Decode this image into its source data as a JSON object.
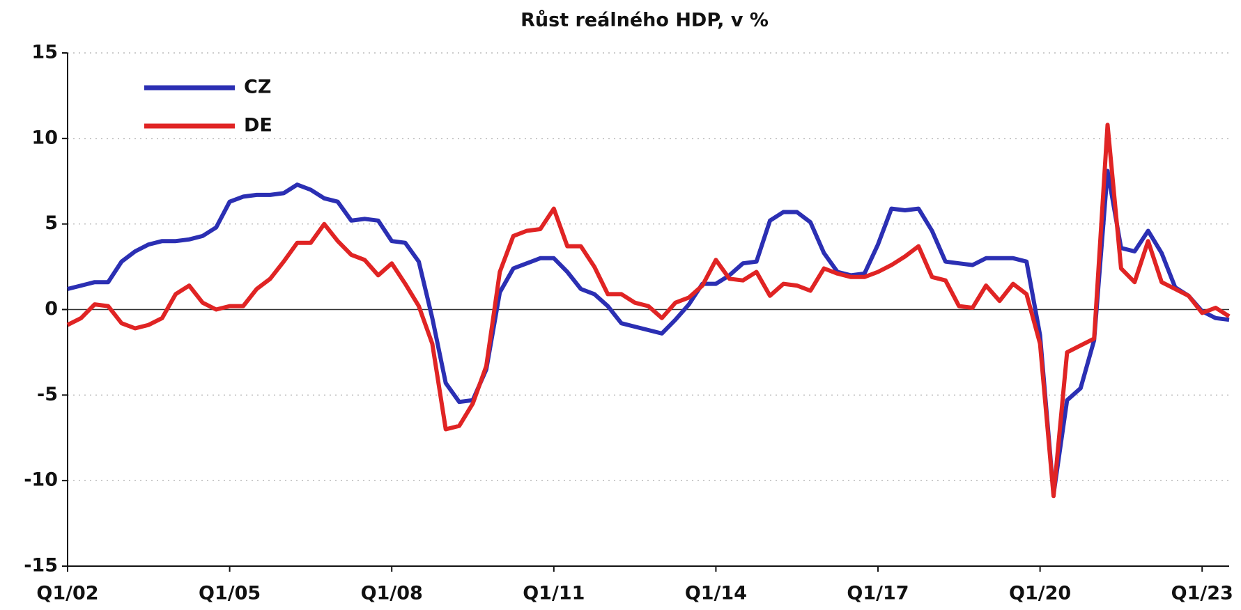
{
  "chart_data": {
    "type": "line",
    "title": "Růst reálného HDP, v %",
    "categories": [
      "Q1/02",
      null,
      null,
      null,
      null,
      null,
      null,
      null,
      null,
      null,
      null,
      null,
      "Q1/05",
      null,
      null,
      null,
      null,
      null,
      null,
      null,
      null,
      null,
      null,
      null,
      "Q1/08",
      null,
      null,
      null,
      null,
      null,
      null,
      null,
      null,
      null,
      null,
      null,
      "Q1/11",
      null,
      null,
      null,
      null,
      null,
      null,
      null,
      null,
      null,
      null,
      null,
      "Q1/14",
      null,
      null,
      null,
      null,
      null,
      null,
      null,
      null,
      null,
      null,
      null,
      "Q1/17",
      null,
      null,
      null,
      null,
      null,
      null,
      null,
      null,
      null,
      null,
      null,
      "Q1/20",
      null,
      null,
      null,
      null,
      null,
      null,
      null,
      null,
      null,
      null,
      null,
      "Q1/23",
      null,
      null
    ],
    "series": [
      {
        "name": "CZ",
        "color": "#2b2fb3",
        "values": [
          1.2,
          1.4,
          1.6,
          1.6,
          2.8,
          3.4,
          3.8,
          4.0,
          4.0,
          4.1,
          4.3,
          4.8,
          6.3,
          6.6,
          6.7,
          6.7,
          6.8,
          7.3,
          7.0,
          6.5,
          6.3,
          5.2,
          5.3,
          5.2,
          4.0,
          3.9,
          2.8,
          -0.5,
          -4.3,
          -5.4,
          -5.3,
          -3.5,
          1.0,
          2.4,
          2.7,
          3.0,
          3.0,
          2.2,
          1.2,
          0.9,
          0.2,
          -0.8,
          -1.0,
          -1.2,
          -1.4,
          -0.6,
          0.3,
          1.5,
          1.5,
          2.0,
          2.7,
          2.8,
          5.2,
          5.7,
          5.7,
          5.1,
          3.3,
          2.2,
          2.0,
          2.1,
          3.8,
          5.9,
          5.8,
          5.9,
          4.6,
          2.8,
          2.7,
          2.6,
          3.0,
          3.0,
          3.0,
          2.8,
          -1.5,
          -10.8,
          -5.3,
          -4.6,
          -1.8,
          8.1,
          3.6,
          3.4,
          4.6,
          3.3,
          1.3,
          0.8,
          -0.1,
          -0.5,
          -0.6
        ]
      },
      {
        "name": "DE",
        "color": "#e02424",
        "values": [
          -0.9,
          -0.5,
          0.3,
          0.2,
          -0.8,
          -1.1,
          -0.9,
          -0.5,
          0.9,
          1.4,
          0.4,
          0.0,
          0.2,
          0.2,
          1.2,
          1.8,
          2.8,
          3.9,
          3.9,
          5.0,
          4.0,
          3.2,
          2.9,
          2.0,
          2.7,
          1.5,
          0.2,
          -2.0,
          -7.0,
          -6.8,
          -5.5,
          -3.3,
          2.2,
          4.3,
          4.6,
          4.7,
          5.9,
          3.7,
          3.7,
          2.5,
          0.9,
          0.9,
          0.4,
          0.2,
          -0.5,
          0.4,
          0.7,
          1.4,
          2.9,
          1.8,
          1.7,
          2.2,
          0.8,
          1.5,
          1.4,
          1.1,
          2.4,
          2.1,
          1.9,
          1.9,
          2.2,
          2.6,
          3.1,
          3.7,
          1.9,
          1.7,
          0.2,
          0.1,
          1.4,
          0.5,
          1.5,
          0.9,
          -2.0,
          -10.9,
          -2.5,
          -2.1,
          -1.7,
          10.8,
          2.4,
          1.6,
          4.0,
          1.6,
          1.2,
          0.8,
          -0.2,
          0.1,
          -0.4
        ]
      }
    ],
    "ylim": [
      -15,
      15
    ],
    "yticks": [
      -15,
      -10,
      -5,
      0,
      5,
      10,
      15
    ],
    "grid": true,
    "legend": "upper left"
  }
}
